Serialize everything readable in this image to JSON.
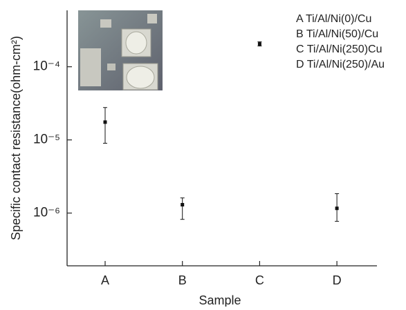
{
  "chart_data": {
    "type": "errorbar",
    "x_label": "Sample",
    "y_label": "Specific contact resistance(ohm-cm²)",
    "categories": [
      "A",
      "B",
      "C",
      "D"
    ],
    "values": [
      1.75e-05,
      1.3e-06,
      0.000205,
      1.16e-06
    ],
    "lower": [
      9e-06,
      8.2e-07,
      0.000192,
      7.7e-07
    ],
    "upper": [
      2.77e-05,
      1.61e-06,
      0.000219,
      1.84e-06
    ],
    "color": "#111111",
    "log_y": true,
    "ylim": [
      1.9e-07,
      0.00059
    ],
    "yticks": [
      {
        "value": 1e-06,
        "label": "10⁻⁶"
      },
      {
        "value": 1e-05,
        "label": "10⁻⁵"
      },
      {
        "value": 0.0001,
        "label": "10⁻⁴"
      }
    ],
    "annotations": [
      "A Ti/Al/Ni(0)/Cu",
      "B Ti/Al/Ni(50)/Cu",
      "C Ti/Al/Ni(250)Cu",
      "D Ti/Al/Ni(250)/Au"
    ]
  }
}
